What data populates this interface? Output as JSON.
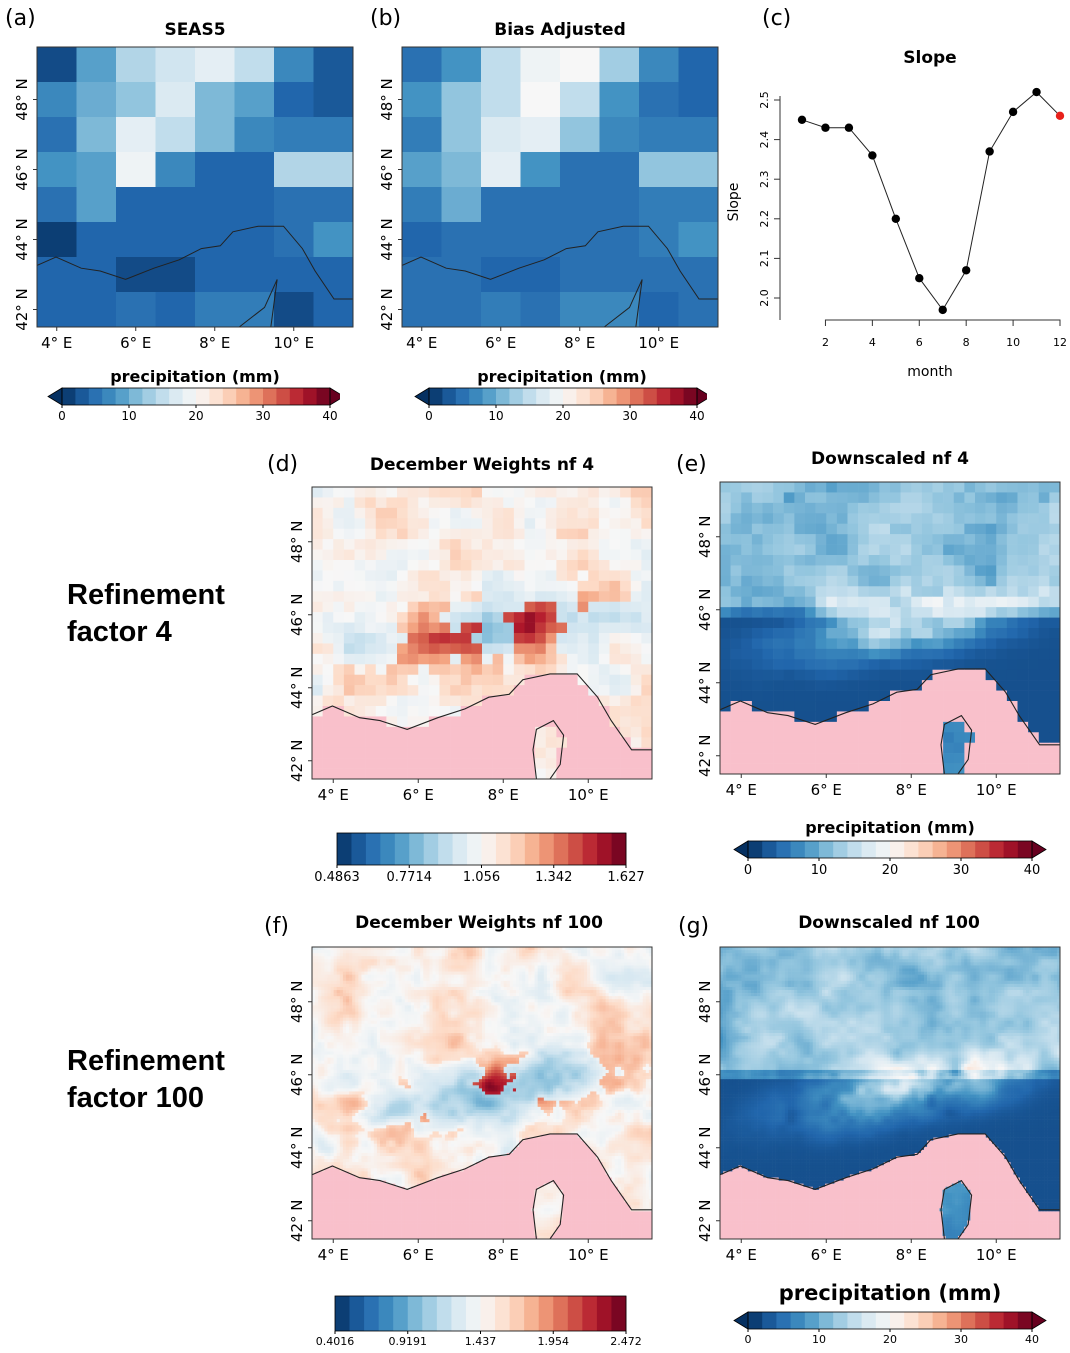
{
  "panels": {
    "a": {
      "label": "(a)",
      "title": "SEAS5",
      "cb_title": "precipitation (mm)"
    },
    "b": {
      "label": "(b)",
      "title": "Bias Adjusted",
      "cb_title": "precipitation (mm)"
    },
    "c": {
      "label": "(c)",
      "title": "Slope"
    },
    "d": {
      "label": "(d)",
      "title": "December Weights nf 4"
    },
    "e": {
      "label": "(e)",
      "title": "Downscaled nf 4",
      "cb_title": "precipitation (mm)"
    },
    "f": {
      "label": "(f)",
      "title": "December Weights nf 100"
    },
    "g": {
      "label": "(g)",
      "title": "Downscaled nf 100",
      "cb_title": "precipitation (mm)"
    }
  },
  "row_labels": {
    "nf4": [
      "Refinement",
      "factor 4"
    ],
    "nf100": [
      "Refinement",
      "factor 100"
    ]
  },
  "map_axes": {
    "x_ticks": [
      "4° E",
      "6° E",
      "8° E",
      "10° E"
    ],
    "y_ticks": [
      "42° N",
      "44° N",
      "46° N",
      "48° N"
    ]
  },
  "colorbars": {
    "precip": {
      "ticks": [
        "0",
        "10",
        "20",
        "30",
        "40"
      ]
    },
    "weights4": {
      "ticks": [
        "0.4863",
        "0.7714",
        "1.056",
        "1.342",
        "1.627"
      ]
    },
    "weights100": {
      "ticks": [
        "0.4016",
        "0.9191",
        "1.437",
        "1.954",
        "2.472"
      ]
    }
  },
  "colors": {
    "land_mask": "#f9c0cb",
    "highlight_point": "#e8211b"
  },
  "chart_data": [
    {
      "type": "line",
      "title": "Slope",
      "xlabel": "month",
      "ylabel": "Slope",
      "x": [
        1,
        2,
        3,
        4,
        5,
        6,
        7,
        8,
        9,
        10,
        11,
        12
      ],
      "y": [
        2.45,
        2.43,
        2.43,
        2.36,
        2.2,
        2.05,
        1.97,
        2.07,
        2.37,
        2.47,
        2.52,
        2.46
      ],
      "xlim": [
        1,
        12
      ],
      "ylim": [
        2.0,
        2.5
      ],
      "x_ticks": [
        "2",
        "4",
        "6",
        "8",
        "10",
        "12"
      ],
      "y_ticks": [
        "2.0",
        "2.1",
        "2.2",
        "2.3",
        "2.4",
        "2.5"
      ],
      "highlight_index": 11,
      "grid": false
    },
    {
      "type": "heatmap",
      "title": "SEAS5",
      "x_ticks": [
        "4° E",
        "6° E",
        "8° E",
        "10° E"
      ],
      "y_ticks": [
        "42° N",
        "44° N",
        "46° N",
        "48° N"
      ],
      "colorbar_title": "precipitation (mm)",
      "vmin": 0,
      "vmax": 40,
      "values": [
        [
          2,
          9,
          14,
          16,
          18,
          15,
          7,
          3
        ],
        [
          7,
          10,
          12,
          17,
          11,
          9,
          4,
          3
        ],
        [
          5,
          11,
          18,
          15,
          11,
          7,
          6,
          6
        ],
        [
          8,
          9,
          19,
          7,
          4,
          4,
          14,
          14
        ],
        [
          5,
          9,
          4,
          4,
          4,
          4,
          5,
          5
        ],
        [
          1,
          4,
          4,
          4,
          4,
          4,
          5,
          8
        ],
        [
          4,
          4,
          2,
          2,
          4,
          4,
          4,
          4
        ],
        [
          4,
          4,
          5,
          4,
          6,
          6,
          2,
          4
        ]
      ]
    },
    {
      "type": "heatmap",
      "title": "Bias Adjusted",
      "x_ticks": [
        "4° E",
        "6° E",
        "8° E",
        "10° E"
      ],
      "y_ticks": [
        "42° N",
        "44° N",
        "46° N",
        "48° N"
      ],
      "colorbar_title": "precipitation (mm)",
      "vmin": 0,
      "vmax": 40,
      "values": [
        [
          5,
          8,
          15,
          19,
          20,
          13,
          7,
          4
        ],
        [
          8,
          12,
          15,
          20,
          15,
          8,
          5,
          4
        ],
        [
          6,
          12,
          17,
          18,
          12,
          7,
          6,
          6
        ],
        [
          9,
          11,
          18,
          8,
          5,
          5,
          12,
          12
        ],
        [
          6,
          10,
          5,
          5,
          5,
          5,
          6,
          6
        ],
        [
          4,
          5,
          5,
          5,
          5,
          5,
          6,
          8
        ],
        [
          5,
          5,
          4,
          4,
          5,
          5,
          5,
          5
        ],
        [
          5,
          5,
          6,
          5,
          7,
          7,
          4,
          5
        ]
      ]
    }
  ]
}
